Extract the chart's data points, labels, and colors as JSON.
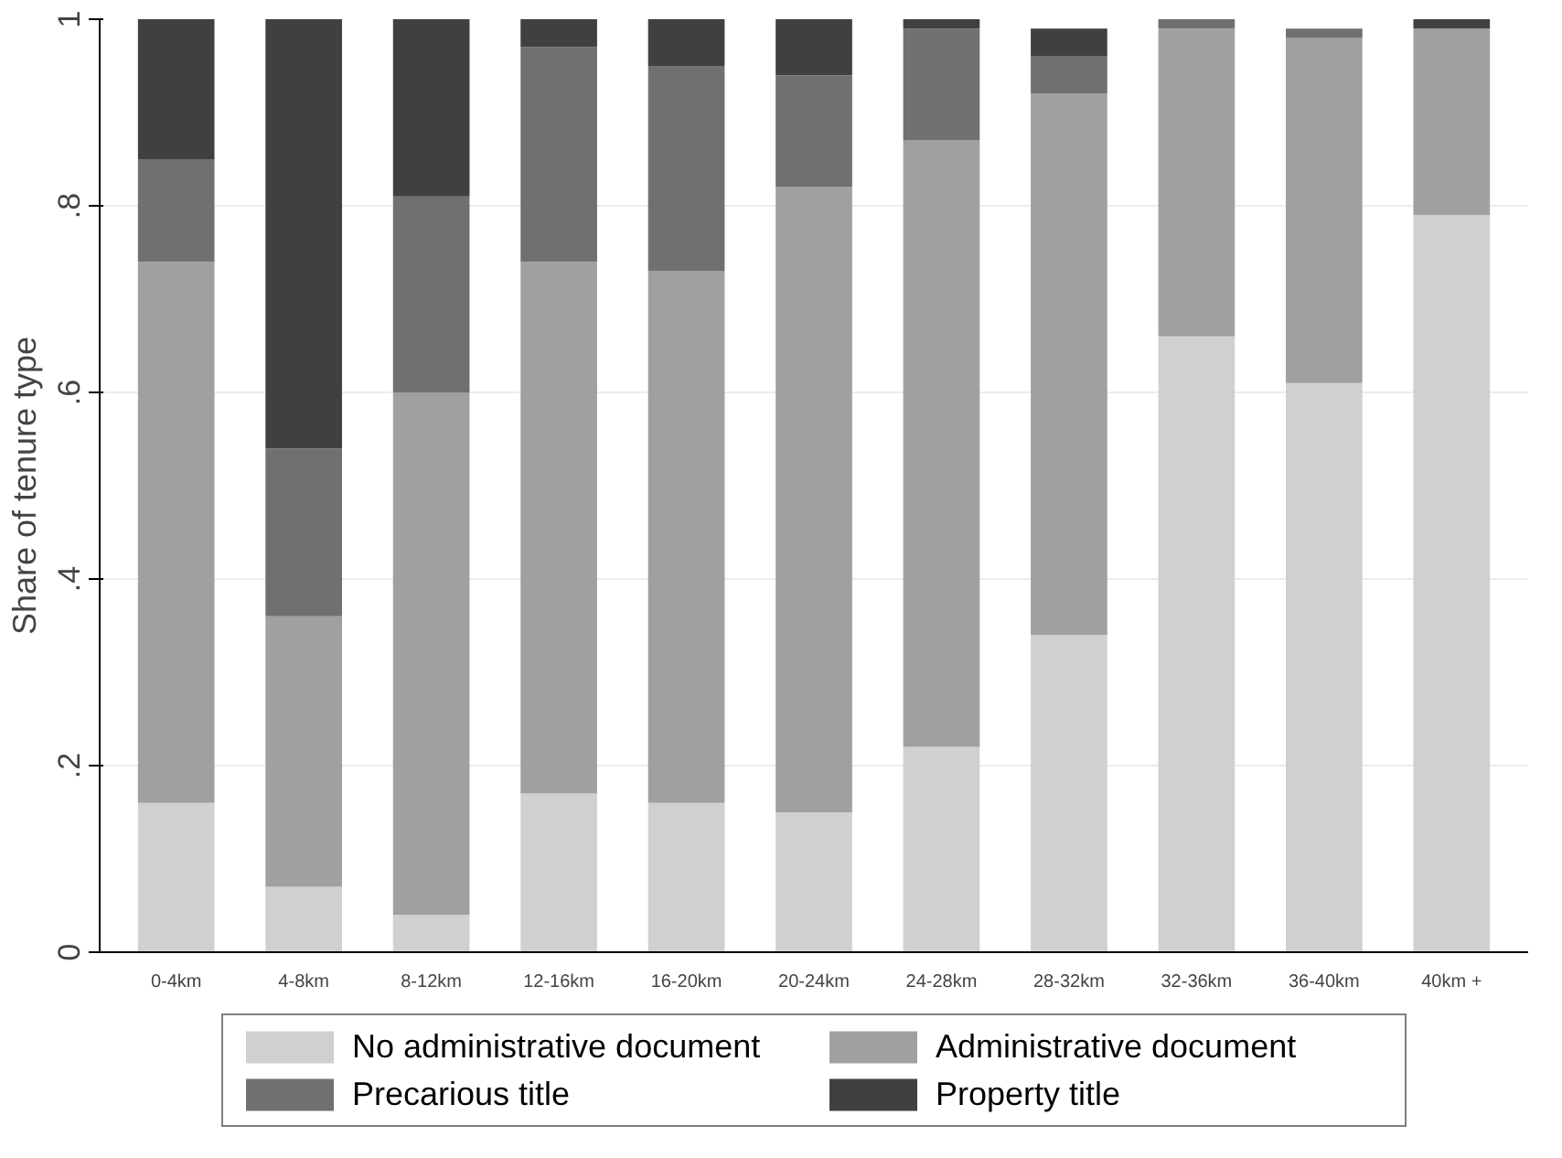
{
  "chart_data": {
    "type": "bar",
    "stacked": true,
    "ylabel": "Share of tenure type",
    "categories": [
      "0-4km",
      "4-8km",
      "8-12km",
      "12-16km",
      "16-20km",
      "20-24km",
      "24-28km",
      "28-32km",
      "32-36km",
      "36-40km",
      "40km +"
    ],
    "series": [
      {
        "name": "No administrative document",
        "color": "#d0d0d0",
        "values": [
          0.16,
          0.07,
          0.04,
          0.17,
          0.16,
          0.15,
          0.22,
          0.34,
          0.66,
          0.61,
          0.79
        ]
      },
      {
        "name": "Administrative document",
        "color": "#a0a0a0",
        "values": [
          0.58,
          0.29,
          0.56,
          0.57,
          0.57,
          0.67,
          0.65,
          0.58,
          0.33,
          0.37,
          0.2
        ]
      },
      {
        "name": "Precarious title",
        "color": "#707070",
        "values": [
          0.11,
          0.18,
          0.21,
          0.23,
          0.22,
          0.12,
          0.12,
          0.04,
          0.01,
          0.01,
          0.0
        ]
      },
      {
        "name": "Property title",
        "color": "#404040",
        "values": [
          0.15,
          0.46,
          0.19,
          0.03,
          0.05,
          0.06,
          0.01,
          0.03,
          0.0,
          0.0,
          0.01
        ]
      }
    ],
    "ylim": [
      0,
      1
    ],
    "yticks": [
      0,
      {
        "value": 0.2,
        "label": ".2"
      },
      {
        "value": 0.4,
        "label": ".4"
      },
      {
        "value": 0.6,
        "label": ".6"
      },
      {
        "value": 0.8,
        "label": ".8"
      },
      1
    ],
    "grid": "y",
    "legend": "bottom"
  }
}
